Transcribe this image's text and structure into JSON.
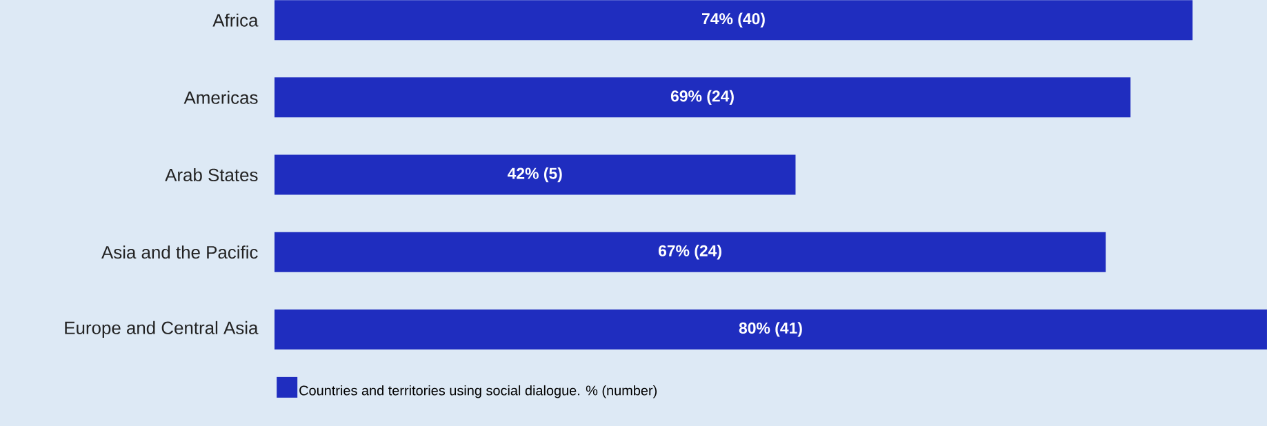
{
  "chart_data": {
    "type": "bar",
    "orientation": "horizontal",
    "categories": [
      "Africa",
      "Americas",
      "Arab States",
      "Asia and the Pacific",
      "Europe and Central Asia"
    ],
    "series": [
      {
        "name": "Countries and territories using social dialogue. % (number)",
        "color": "#1f2dbf",
        "values": [
          74,
          69,
          42,
          67,
          80
        ],
        "value_labels": [
          "74% (40)",
          "69% (24)",
          "42% (5)",
          "67% (24)",
          "80% (41)"
        ]
      }
    ],
    "legend": "bottom"
  }
}
